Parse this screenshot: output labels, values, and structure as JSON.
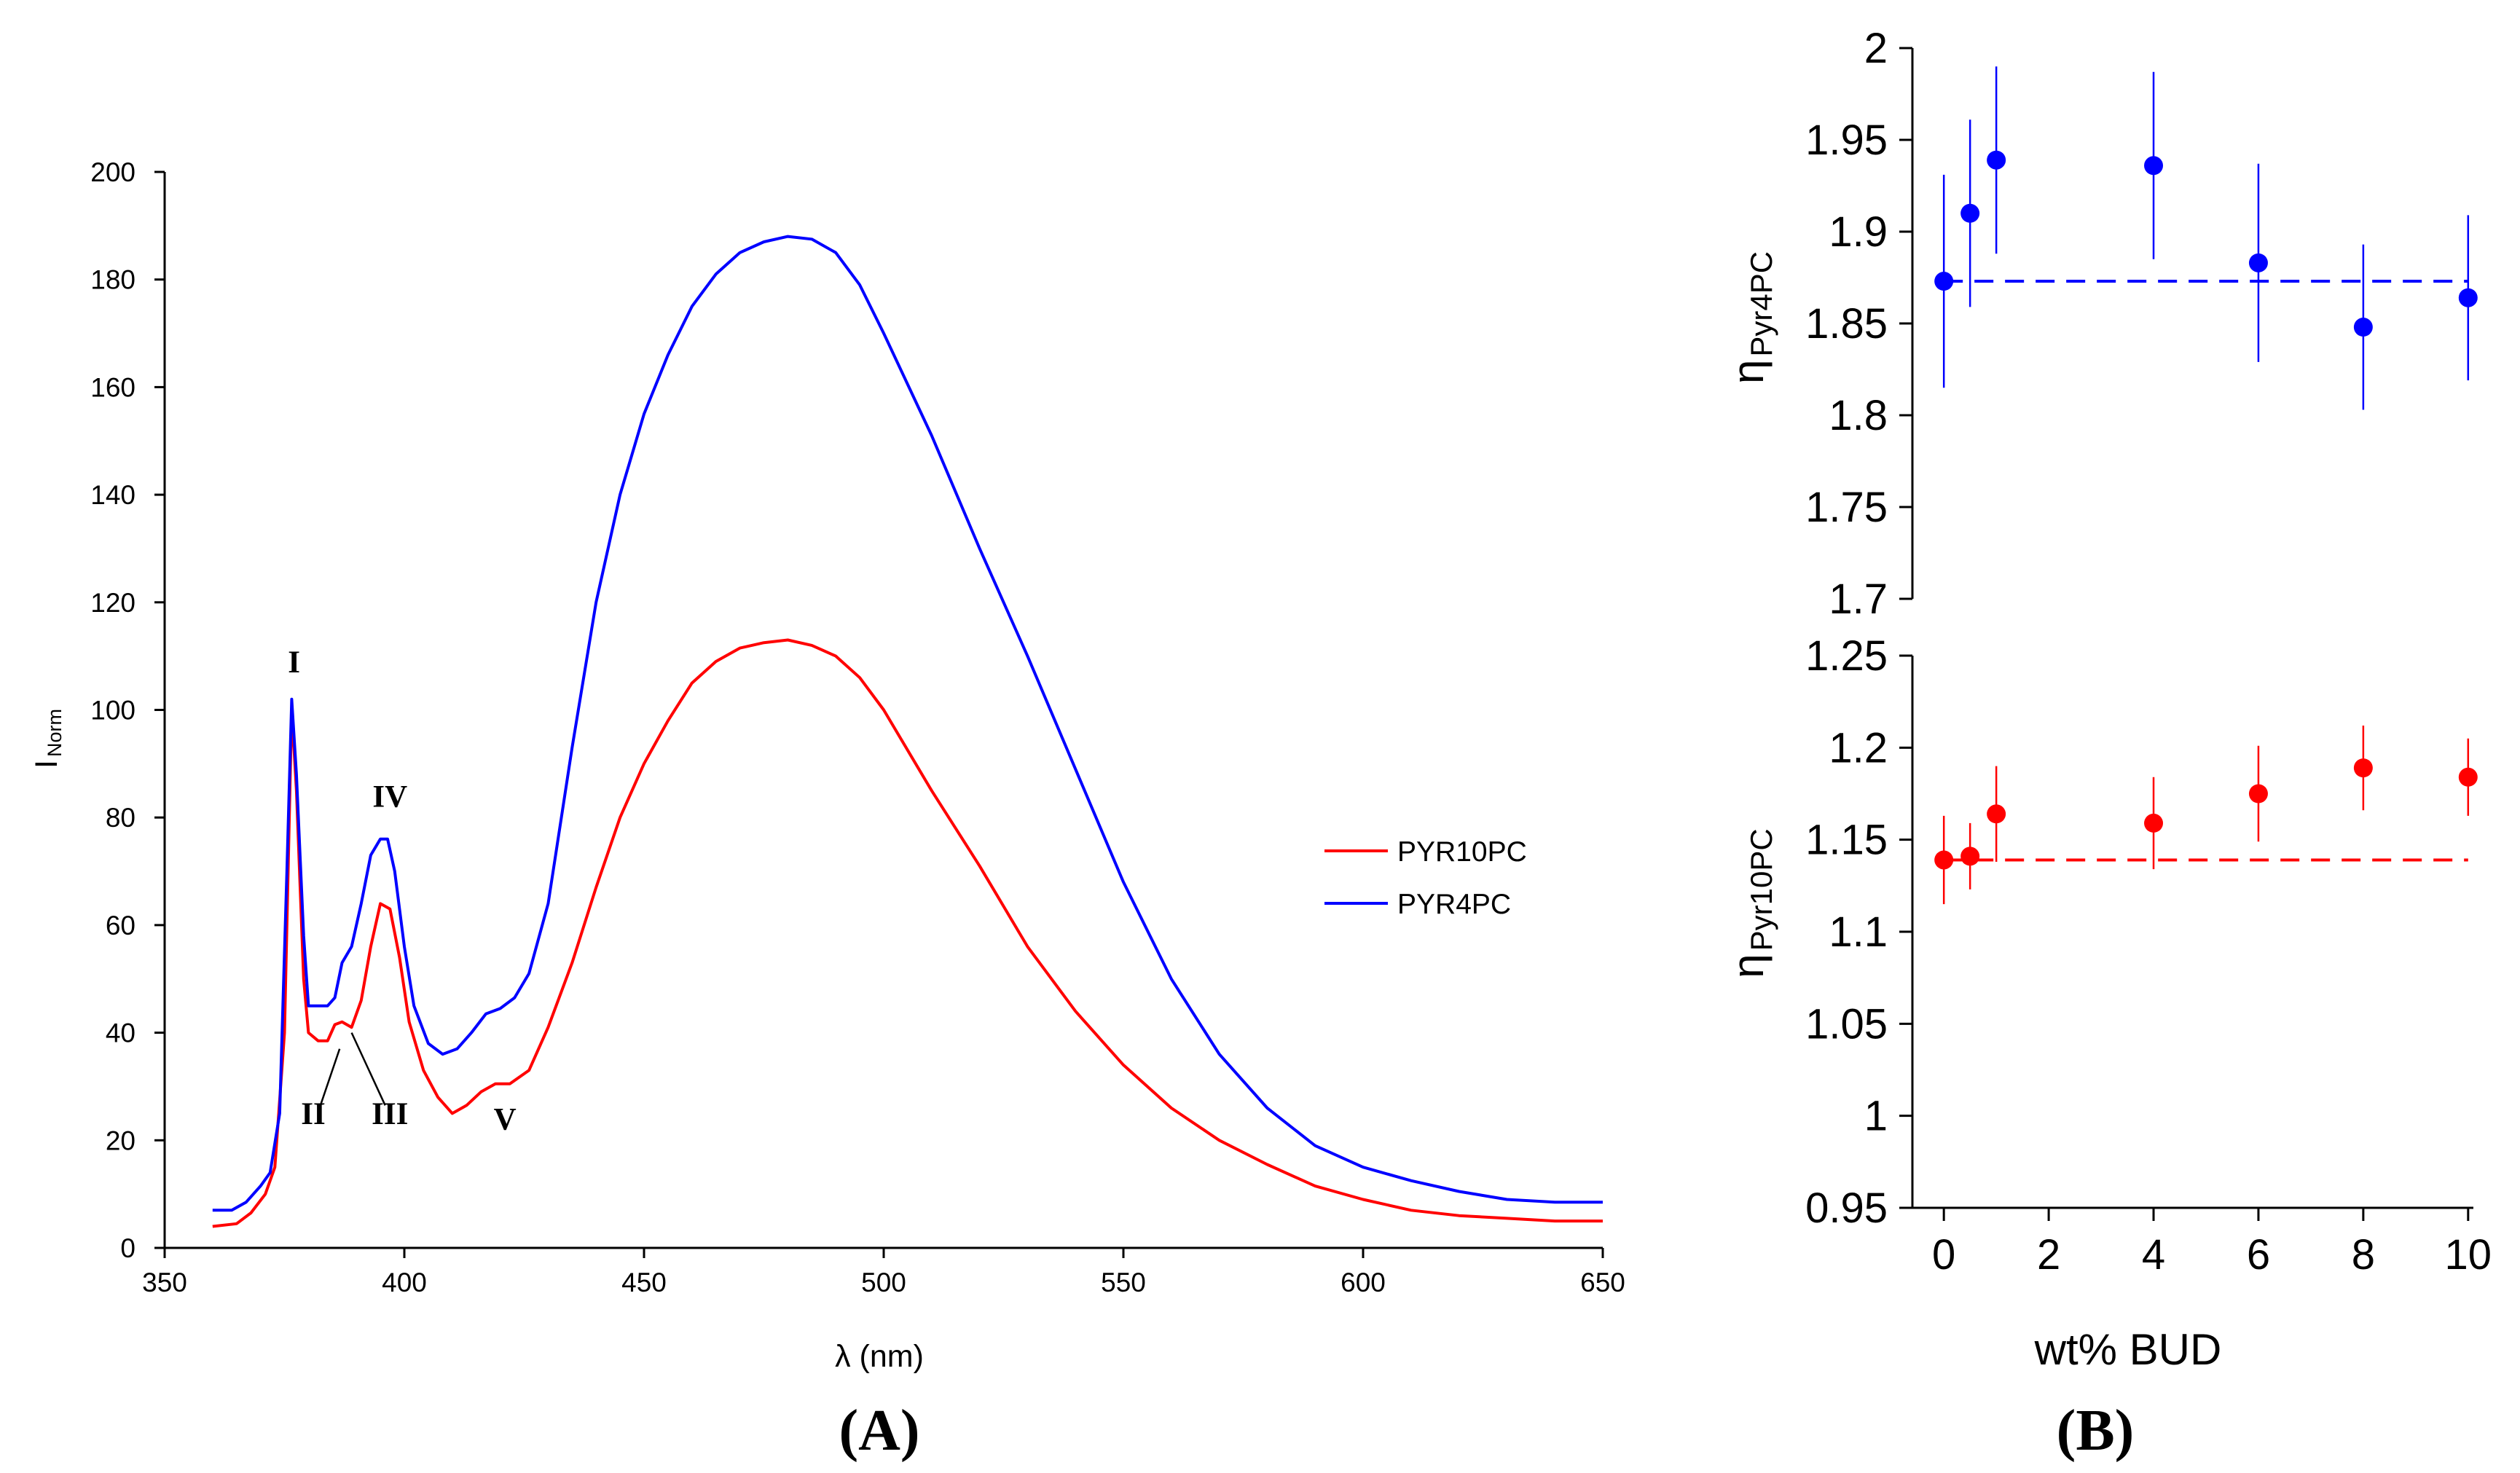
{
  "panel_labels": {
    "a": "(A)",
    "b": "(B)"
  },
  "chart_data": [
    {
      "type": "line",
      "title": "",
      "xlabel": "λ (nm)",
      "ylabel": {
        "main": "I",
        "sub": "Norm"
      },
      "xlim": [
        350,
        650
      ],
      "ylim": [
        0,
        200
      ],
      "xticks": [
        350,
        400,
        450,
        500,
        550,
        600,
        650
      ],
      "yticks": [
        0,
        20,
        40,
        60,
        80,
        100,
        120,
        140,
        160,
        180,
        200
      ],
      "legend_position": "right-middle",
      "series": [
        {
          "name": "PYR10PC",
          "color": "#ff0000",
          "x": [
            360,
            365,
            368,
            371,
            373,
            375,
            376.5,
            377.5,
            379,
            380,
            382,
            384,
            385.5,
            387,
            389,
            391,
            393,
            395,
            397,
            399,
            401,
            404,
            407,
            410,
            413,
            416,
            419,
            422,
            426,
            430,
            435,
            440,
            445,
            450,
            455,
            460,
            465,
            470,
            475,
            480,
            485,
            490,
            495,
            500,
            510,
            520,
            530,
            540,
            550,
            560,
            570,
            580,
            590,
            600,
            610,
            620,
            630,
            640,
            650
          ],
          "y": [
            4,
            4.5,
            6.5,
            10,
            15,
            40,
            100,
            85,
            50,
            40,
            38.5,
            38.5,
            41.5,
            42,
            41,
            46,
            56,
            64,
            63,
            54,
            42,
            33,
            28,
            25,
            26.5,
            29,
            30.5,
            30.5,
            33,
            41,
            53,
            67,
            80,
            90,
            98,
            105,
            109,
            111.5,
            112.5,
            113,
            112,
            110,
            106,
            100,
            85,
            71,
            56,
            44,
            34,
            26,
            20,
            15.5,
            11.5,
            9,
            7,
            6,
            5.5,
            5,
            5
          ]
        },
        {
          "name": "PYR4PC",
          "color": "#0000ff",
          "x": [
            360,
            364,
            367,
            370,
            372,
            374,
            375.5,
            376.5,
            377.5,
            379,
            380,
            382,
            384,
            385.5,
            387,
            389,
            391,
            393,
            395,
            396.5,
            398,
            400,
            402,
            405,
            408,
            411,
            414,
            417,
            420,
            423,
            426,
            430,
            435,
            440,
            445,
            450,
            455,
            460,
            465,
            470,
            475,
            480,
            485,
            490,
            495,
            500,
            510,
            520,
            530,
            540,
            550,
            560,
            570,
            580,
            590,
            600,
            610,
            620,
            630,
            640,
            650
          ],
          "y": [
            7,
            7,
            8.5,
            11.5,
            14,
            25,
            70,
            102,
            88,
            58,
            45,
            45,
            45,
            46.5,
            53,
            56,
            64,
            73,
            76,
            76,
            70,
            56,
            45,
            38,
            36,
            37,
            40,
            43.5,
            44.5,
            46.5,
            51,
            64,
            93,
            120,
            140,
            155,
            166,
            175,
            181,
            185,
            187,
            188,
            187.5,
            185,
            179,
            170,
            151,
            130,
            110,
            89,
            68,
            50,
            36,
            26,
            19,
            15,
            12.5,
            10.5,
            9,
            8.5,
            8.5
          ]
        }
      ],
      "annotations": [
        {
          "text": "I",
          "x": 377,
          "y": 107
        },
        {
          "text": "II",
          "x": 381,
          "y": 23
        },
        {
          "text": "III",
          "x": 397,
          "y": 23
        },
        {
          "text": "IV",
          "x": 397,
          "y": 82
        },
        {
          "text": "V",
          "x": 421,
          "y": 22
        }
      ]
    },
    {
      "type": "scatter",
      "title": "",
      "xlabel": "wt% BUD",
      "xlim": [
        -0.6,
        10.1
      ],
      "xticks": [
        0,
        2,
        4,
        6,
        8,
        10
      ],
      "panels": [
        {
          "name": "PYR4PC",
          "ylabel": {
            "main": "η",
            "sub": "Pyr4PC"
          },
          "color": "#0000ff",
          "ylim": [
            1.7,
            2.0
          ],
          "yticks": [
            "1.7",
            "1.75",
            "1.8",
            "1.85",
            "1.9",
            "1.95",
            "2"
          ],
          "x": [
            0,
            0.5,
            1,
            4,
            6,
            8,
            10
          ],
          "y": [
            1.873,
            1.91,
            1.939,
            1.936,
            1.883,
            1.848,
            1.864
          ],
          "err": [
            0.058,
            0.051,
            0.051,
            0.051,
            0.054,
            0.045,
            0.045
          ],
          "reference_line": 1.873
        },
        {
          "name": "PYR10PC",
          "ylabel": {
            "main": "η",
            "sub": "Pyr10PC"
          },
          "color": "#ff0000",
          "ylim": [
            0.95,
            1.25
          ],
          "yticks": [
            "0.95",
            "1",
            "1.05",
            "1.1",
            "1.15",
            "1.2",
            "1.25"
          ],
          "x": [
            0,
            0.5,
            1,
            4,
            6,
            8,
            10
          ],
          "y": [
            1.139,
            1.141,
            1.164,
            1.159,
            1.175,
            1.189,
            1.184
          ],
          "err": [
            0.024,
            0.018,
            0.026,
            0.025,
            0.026,
            0.023,
            0.021
          ],
          "reference_line": 1.139
        }
      ]
    }
  ]
}
